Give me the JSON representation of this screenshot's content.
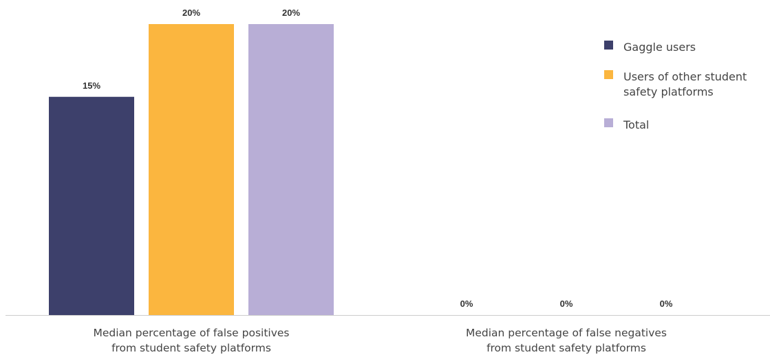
{
  "chart_data": {
    "type": "bar",
    "categories": [
      [
        "Median percentage of false positives",
        "from student safety platforms"
      ],
      [
        "Median percentage of false negatives",
        "from student safety platforms"
      ]
    ],
    "series": [
      {
        "name": "Gaggle users",
        "color": "#3d406b",
        "values": [
          15,
          0
        ],
        "labels": [
          "15%",
          "0%"
        ]
      },
      {
        "name": [
          "Users of other student",
          "safety platforms"
        ],
        "color": "#fbb63f",
        "values": [
          20,
          0
        ],
        "labels": [
          "20%",
          "0%"
        ]
      },
      {
        "name": "Total",
        "color": "#b8aed6",
        "values": [
          20,
          0
        ],
        "labels": [
          "20%",
          "0%"
        ]
      }
    ],
    "ylim": [
      0,
      20
    ],
    "grid": false,
    "legend_position": "top-right",
    "baseline_color": "#cccccc"
  }
}
